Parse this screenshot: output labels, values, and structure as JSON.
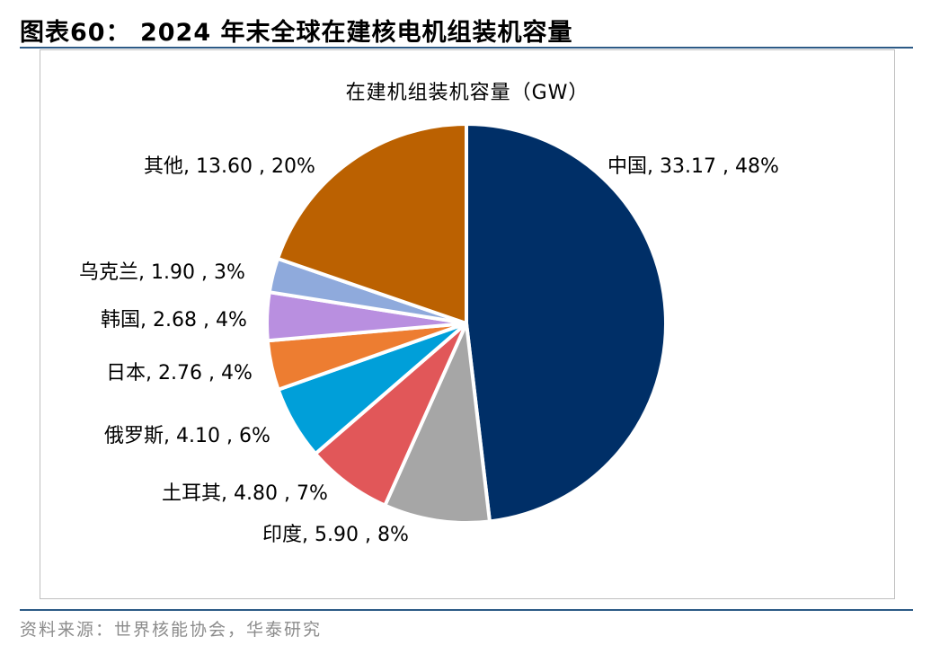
{
  "header": {
    "figure_title": "图表60：  2024 年末全球在建核电机组装机容量"
  },
  "footer": {
    "source": "资料来源：世界核能协会，华泰研究"
  },
  "chart_data": {
    "type": "pie",
    "title": "在建机组装机容量（GW）",
    "unit": "GW",
    "slices": [
      {
        "name": "中国",
        "value": 33.17,
        "percent": "48%",
        "color": "#002f67",
        "label": "中国, 33.17 , 48%"
      },
      {
        "name": "印度",
        "value": 5.9,
        "percent": "8%",
        "color": "#a6a6a6",
        "label": "印度, 5.90 , 8%"
      },
      {
        "name": "土耳其",
        "value": 4.8,
        "percent": "7%",
        "color": "#e15759",
        "label": "土耳其, 4.80 , 7%"
      },
      {
        "name": "俄罗斯",
        "value": 4.1,
        "percent": "6%",
        "color": "#009fd9",
        "label": "俄罗斯, 4.10 , 6%"
      },
      {
        "name": "日本",
        "value": 2.76,
        "percent": "4%",
        "color": "#ed7d31",
        "label": "日本, 2.76 , 4%"
      },
      {
        "name": "韩国",
        "value": 2.68,
        "percent": "4%",
        "color": "#b98fe0",
        "label": "韩国, 2.68 , 4%"
      },
      {
        "name": "乌克兰",
        "value": 1.9,
        "percent": "3%",
        "color": "#8faadc",
        "label": "乌克兰, 1.90 , 3%"
      },
      {
        "name": "其他",
        "value": 13.6,
        "percent": "20%",
        "color": "#bb6101",
        "label": "其他, 13.60 , 20%"
      }
    ]
  }
}
